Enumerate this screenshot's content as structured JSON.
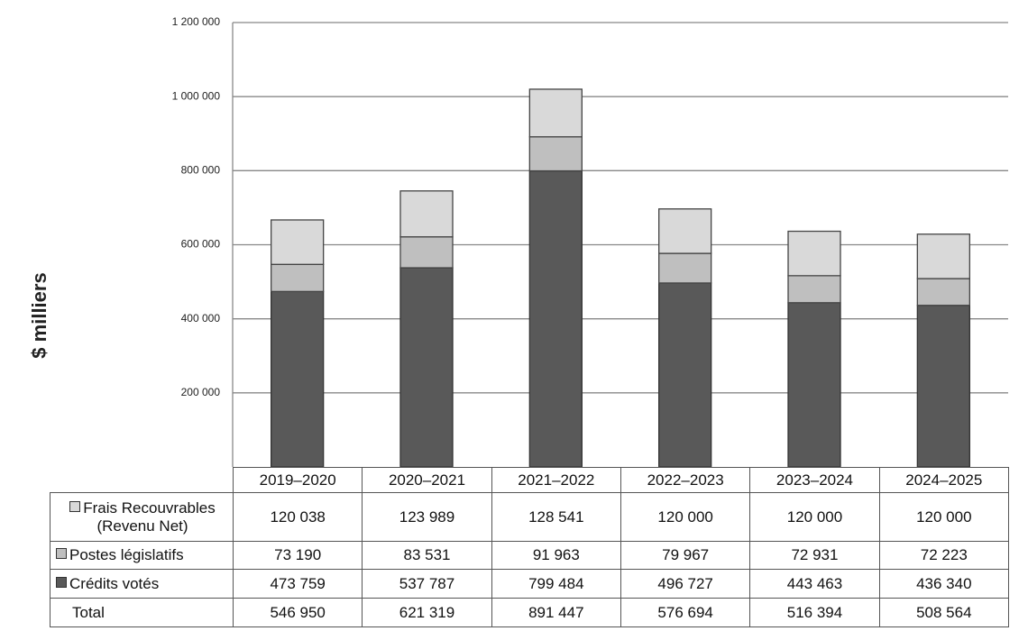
{
  "chart_data": {
    "type": "bar",
    "stacked": true,
    "y_label": "$ milliers",
    "categories": [
      "2019–2020",
      "2020–2021",
      "2021–2022",
      "2022–2023",
      "2023–2024",
      "2024–2025"
    ],
    "series": [
      {
        "name": "Frais Recouvrables (Revenu Net)",
        "color": "#d9d9d9",
        "values": [
          120038,
          123989,
          128541,
          120000,
          120000,
          120000
        ],
        "value_labels": [
          "120 038",
          "123 989",
          "128 541",
          "120 000",
          "120 000",
          "120 000"
        ]
      },
      {
        "name": "Postes législatifs",
        "color": "#bfbfbf",
        "values": [
          73190,
          83531,
          91963,
          79967,
          72931,
          72223
        ],
        "value_labels": [
          "73 190",
          "83 531",
          "91 963",
          "79 967",
          "72 931",
          "72 223"
        ]
      },
      {
        "name": "Crédits votés",
        "color": "#595959",
        "values": [
          473759,
          537787,
          799484,
          496727,
          443463,
          436340
        ],
        "value_labels": [
          "473 759",
          "537 787",
          "799 484",
          "496 727",
          "443 463",
          "436 340"
        ]
      }
    ],
    "totals": {
      "name": "Total",
      "values": [
        546950,
        621319,
        891447,
        576694,
        516394,
        508564
      ],
      "value_labels": [
        "546 950",
        "621 319",
        "891 447",
        "576 694",
        "516 394",
        "508 564"
      ]
    },
    "ylim": [
      0,
      1200000
    ],
    "yticks": [
      {
        "value": 200000,
        "label": "200 000"
      },
      {
        "value": 400000,
        "label": "400 000"
      },
      {
        "value": 600000,
        "label": "600 000"
      },
      {
        "value": 800000,
        "label": "800 000"
      },
      {
        "value": 1000000,
        "label": "1 000 000"
      },
      {
        "value": 1200000,
        "label": "1 200 000"
      }
    ],
    "grid": true
  }
}
